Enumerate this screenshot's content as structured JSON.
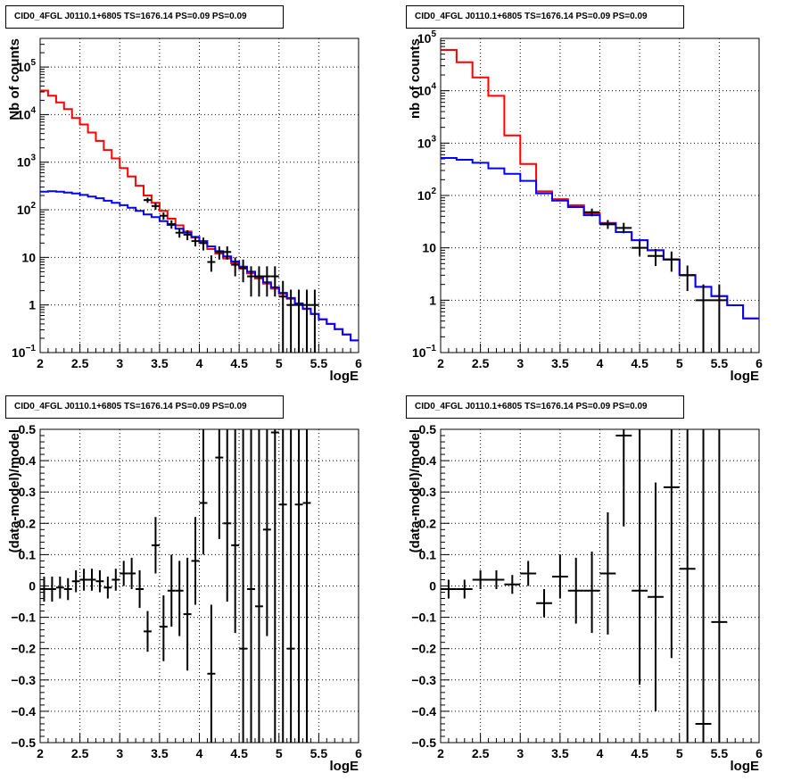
{
  "panels": [
    {
      "title": "CID0_4FGL J0110.1+6805 TS=1676.14 PS=0.09 PS=0.09",
      "chart_data": {
        "type": "line",
        "xlabel": "logE",
        "ylabel": "Nb of counts",
        "yscale": "log",
        "xlim": [
          2,
          6
        ],
        "ylim": [
          0.1,
          400000
        ],
        "grid": true,
        "xticks": [
          "2",
          "2.5",
          "3",
          "3.5",
          "4",
          "4.5",
          "5",
          "5.5",
          "6"
        ],
        "yticks": [
          {
            "v": 0.1,
            "base": "10",
            "exp": "−1"
          },
          {
            "v": 1,
            "base": "1",
            "exp": ""
          },
          {
            "v": 10,
            "base": "10",
            "exp": ""
          },
          {
            "v": 100,
            "base": "10",
            "exp": "2"
          },
          {
            "v": 1000,
            "base": "10",
            "exp": "3"
          },
          {
            "v": 10000,
            "base": "10",
            "exp": "4"
          },
          {
            "v": 100000,
            "base": "10",
            "exp": "5"
          }
        ],
        "series": [
          {
            "color": "#ff0000",
            "style": "step",
            "bin_width": 0.1,
            "x": [
              2.0,
              2.1,
              2.2,
              2.3,
              2.4,
              2.5,
              2.6,
              2.7,
              2.8,
              2.9,
              3.0,
              3.1,
              3.2,
              3.3,
              3.4,
              3.5,
              3.6,
              3.7,
              3.8,
              3.9,
              4.0,
              4.1,
              4.2,
              4.3,
              4.4,
              4.5,
              4.6,
              4.7,
              4.8,
              4.9,
              5.0,
              5.1,
              5.2,
              5.3,
              5.4,
              5.5,
              5.6,
              5.7,
              5.8,
              5.9
            ],
            "y": [
              32000,
              25000,
              18000,
              13000,
              8500,
              6200,
              4200,
              2800,
              1800,
              1200,
              750,
              500,
              320,
              200,
              140,
              95,
              65,
              47,
              35,
              26,
              20,
              15,
              12,
              9.5,
              7.5,
              5.8,
              4.6,
              3.6,
              2.8,
              2.2,
              1.7,
              1.35,
              1.05,
              0.82,
              0.65,
              0.5,
              0.4,
              0.31,
              0.24,
              0.18
            ]
          },
          {
            "color": "#0000ff",
            "style": "step",
            "bin_width": 0.1,
            "x": [
              2.0,
              2.1,
              2.2,
              2.3,
              2.4,
              2.5,
              2.6,
              2.7,
              2.8,
              2.9,
              3.0,
              3.1,
              3.2,
              3.3,
              3.4,
              3.5,
              3.6,
              3.7,
              3.8,
              3.9,
              4.0,
              4.1,
              4.2,
              4.3,
              4.4,
              4.5,
              4.6,
              4.7,
              4.8,
              4.9,
              5.0,
              5.1,
              5.2,
              5.3,
              5.4,
              5.5,
              5.6,
              5.7,
              5.8,
              5.9
            ],
            "y": [
              240,
              245,
              240,
              230,
              220,
              205,
              190,
              175,
              155,
              140,
              125,
              110,
              95,
              80,
              70,
              58,
              48,
              40,
              33,
              27,
              22,
              17,
              13.5,
              10.5,
              8.2,
              6.4,
              5.0,
              3.9,
              3.0,
              2.35,
              1.8,
              1.4,
              1.08,
              0.84,
              0.65,
              0.5,
              0.4,
              0.31,
              0.24,
              0.18
            ]
          },
          {
            "color": "#000000",
            "style": "errorbar",
            "xerr": 0.05,
            "x": [
              3.35,
              3.45,
              3.55,
              3.65,
              3.75,
              3.85,
              3.95,
              4.05,
              4.15,
              4.25,
              4.35,
              4.45,
              4.55,
              4.65,
              4.75,
              4.85,
              4.95,
              5.05,
              5.15,
              5.25,
              5.35,
              5.45
            ],
            "y": [
              160,
              120,
              75,
              50,
              33,
              30,
              22,
              20,
              8,
              13,
              13,
              7,
              6,
              4,
              4,
              4,
              4,
              1.5,
              1,
              1,
              1,
              1
            ],
            "ylo": [
              140,
              100,
              62,
              40,
              26,
              23,
              17,
              14,
              5,
              9,
              9,
              4,
              3,
              1.5,
              1.5,
              1.5,
              1.5,
              0.1,
              0.1,
              0.1,
              0.1,
              0.1
            ],
            "yhi": [
              180,
              140,
              88,
              60,
              40,
              37,
              28,
              26,
              11,
              17,
              17,
              10,
              9,
              6.5,
              6.5,
              6.5,
              6.5,
              3.2,
              2.1,
              2.1,
              2.1,
              2.1
            ]
          }
        ]
      }
    },
    {
      "title": "CID0_4FGL J0110.1+6805 TS=1676.14 PS=0.09 PS=0.09",
      "chart_data": {
        "type": "line",
        "xlabel": "logE",
        "ylabel": "nb of counts",
        "yscale": "log",
        "xlim": [
          2,
          6
        ],
        "ylim": [
          0.1,
          100000
        ],
        "grid": true,
        "xticks": [
          "2",
          "2.5",
          "3",
          "3.5",
          "4",
          "4.5",
          "5",
          "5.5",
          "6"
        ],
        "yticks": [
          {
            "v": 0.1,
            "base": "10",
            "exp": "−1"
          },
          {
            "v": 1,
            "base": "1",
            "exp": ""
          },
          {
            "v": 10,
            "base": "10",
            "exp": ""
          },
          {
            "v": 100,
            "base": "10",
            "exp": "2"
          },
          {
            "v": 1000,
            "base": "10",
            "exp": "3"
          },
          {
            "v": 10000,
            "base": "10",
            "exp": "4"
          },
          {
            "v": 100000,
            "base": "10",
            "exp": "5"
          }
        ],
        "series": [
          {
            "color": "#ff0000",
            "style": "step",
            "bin_width": 0.2,
            "x": [
              2.0,
              2.2,
              2.4,
              2.6,
              2.8,
              3.0,
              3.2,
              3.4,
              3.6,
              3.8,
              4.0,
              4.2,
              4.4,
              4.6,
              4.8,
              5.0,
              5.2,
              5.4,
              5.6,
              5.8
            ],
            "y": [
              60000,
              35000,
              18000,
              8000,
              1400,
              400,
              120,
              85,
              65,
              45,
              30,
              20,
              14,
              9,
              6,
              3,
              1.8,
              1.2,
              0.8,
              0.45
            ]
          },
          {
            "color": "#0000ff",
            "style": "step",
            "bin_width": 0.2,
            "x": [
              2.0,
              2.2,
              2.4,
              2.6,
              2.8,
              3.0,
              3.2,
              3.4,
              3.6,
              3.8,
              4.0,
              4.2,
              4.4,
              4.6,
              4.8,
              5.0,
              5.2,
              5.4,
              5.6,
              5.8
            ],
            "y": [
              520,
              480,
              420,
              330,
              260,
              190,
              110,
              80,
              60,
              42,
              29,
              20,
              14,
              9,
              6,
              3,
              1.8,
              1.2,
              0.8,
              0.45
            ]
          },
          {
            "color": "#000000",
            "style": "errorbar",
            "xerr": 0.1,
            "x": [
              3.9,
              4.1,
              4.3,
              4.5,
              4.7,
              4.9,
              5.1,
              5.3,
              5.5
            ],
            "y": [
              48,
              28,
              24,
              10,
              7,
              6,
              3,
              1,
              1
            ],
            "ylo": [
              40,
              23,
              19,
              7,
              4.5,
              3.5,
              1.5,
              0.1,
              0.1
            ],
            "yhi": [
              56,
              34,
              30,
              13.5,
              9.5,
              8.5,
              4.6,
              2,
              2
            ]
          }
        ]
      }
    },
    {
      "title": "CID0_4FGL J0110.1+6805 TS=1676.14 PS=0.09 PS=0.09",
      "chart_data": {
        "type": "scatter",
        "xlabel": "logE",
        "ylabel": "(data-model)/model",
        "yscale": "linear",
        "xlim": [
          2,
          6
        ],
        "ylim": [
          -0.5,
          0.5
        ],
        "grid": true,
        "xticks": [
          "2",
          "2.5",
          "3",
          "3.5",
          "4",
          "4.5",
          "5",
          "5.5",
          "6"
        ],
        "yticks": [
          {
            "v": -0.5,
            "base": "−0.5",
            "exp": ""
          },
          {
            "v": -0.4,
            "base": "−0.4",
            "exp": ""
          },
          {
            "v": -0.3,
            "base": "−0.3",
            "exp": ""
          },
          {
            "v": -0.2,
            "base": "−0.2",
            "exp": ""
          },
          {
            "v": -0.1,
            "base": "−0.1",
            "exp": ""
          },
          {
            "v": 0,
            "base": "0",
            "exp": ""
          },
          {
            "v": 0.1,
            "base": "0.1",
            "exp": ""
          },
          {
            "v": 0.2,
            "base": "0.2",
            "exp": ""
          },
          {
            "v": 0.3,
            "base": "0.3",
            "exp": ""
          },
          {
            "v": 0.4,
            "base": "0.4",
            "exp": ""
          },
          {
            "v": 0.5,
            "base": "0.5",
            "exp": ""
          }
        ],
        "series": [
          {
            "color": "#000000",
            "style": "errorbar",
            "xerr": 0.05,
            "x": [
              2.05,
              2.15,
              2.25,
              2.35,
              2.45,
              2.55,
              2.65,
              2.75,
              2.85,
              2.95,
              3.05,
              3.15,
              3.25,
              3.35,
              3.45,
              3.55,
              3.65,
              3.75,
              3.85,
              3.95,
              4.05,
              4.15,
              4.25,
              4.35,
              4.45,
              4.55,
              4.65,
              4.75,
              4.85,
              4.95,
              5.05,
              5.15,
              5.25,
              5.35
            ],
            "y": [
              -0.01,
              -0.01,
              -0.005,
              -0.01,
              0.015,
              0.02,
              0.02,
              0.015,
              -0.005,
              0.02,
              0.04,
              0.04,
              -0.01,
              -0.145,
              0.13,
              -0.13,
              -0.015,
              -0.015,
              -0.09,
              0.08,
              0.265,
              -0.28,
              0.41,
              0.2,
              0.13,
              -0.2,
              -0.01,
              -0.065,
              0.18,
              0.49,
              0.26,
              -0.2,
              0.26,
              0.265
            ],
            "ylo": [
              -0.05,
              -0.05,
              -0.04,
              -0.045,
              -0.02,
              -0.015,
              -0.015,
              -0.02,
              -0.04,
              -0.015,
              0.0,
              -0.01,
              -0.07,
              -0.21,
              0.04,
              -0.24,
              -0.13,
              -0.16,
              -0.27,
              -0.06,
              0.1,
              -0.5,
              0.15,
              -0.05,
              -0.15,
              -0.5,
              -0.5,
              -0.5,
              -0.16,
              -0.5,
              -0.5,
              -0.5,
              -0.5,
              -0.5
            ],
            "yhi": [
              0.03,
              0.03,
              0.03,
              0.025,
              0.05,
              0.055,
              0.055,
              0.05,
              0.03,
              0.055,
              0.08,
              0.09,
              0.05,
              -0.08,
              0.22,
              -0.03,
              0.1,
              0.08,
              0.09,
              0.22,
              0.5,
              -0.06,
              0.5,
              0.5,
              0.5,
              0.5,
              0.5,
              0.5,
              0.5,
              0.5,
              0.5,
              0.5,
              0.5,
              0.5
            ]
          }
        ]
      }
    },
    {
      "title": "CID0_4FGL J0110.1+6805 TS=1676.14 PS=0.09 PS=0.09",
      "chart_data": {
        "type": "scatter",
        "xlabel": "logE",
        "ylabel": "(data-model)/model",
        "yscale": "linear",
        "xlim": [
          2,
          6
        ],
        "ylim": [
          -0.5,
          0.5
        ],
        "grid": true,
        "xticks": [
          "2",
          "2.5",
          "3",
          "3.5",
          "4",
          "4.5",
          "5",
          "5.5",
          "6"
        ],
        "yticks": [
          {
            "v": -0.5,
            "base": "−0.5",
            "exp": ""
          },
          {
            "v": -0.4,
            "base": "−0.4",
            "exp": ""
          },
          {
            "v": -0.3,
            "base": "−0.3",
            "exp": ""
          },
          {
            "v": -0.2,
            "base": "−0.2",
            "exp": ""
          },
          {
            "v": -0.1,
            "base": "−0.1",
            "exp": ""
          },
          {
            "v": 0,
            "base": "0",
            "exp": ""
          },
          {
            "v": 0.1,
            "base": "0.1",
            "exp": ""
          },
          {
            "v": 0.2,
            "base": "0.2",
            "exp": ""
          },
          {
            "v": 0.3,
            "base": "0.3",
            "exp": ""
          },
          {
            "v": 0.4,
            "base": "0.4",
            "exp": ""
          },
          {
            "v": 0.5,
            "base": "0.5",
            "exp": ""
          }
        ],
        "series": [
          {
            "color": "#000000",
            "style": "errorbar",
            "xerr": 0.1,
            "x": [
              2.1,
              2.3,
              2.5,
              2.7,
              2.9,
              3.1,
              3.3,
              3.5,
              3.7,
              3.9,
              4.1,
              4.3,
              4.5,
              4.7,
              4.9,
              5.1,
              5.3,
              5.5
            ],
            "y": [
              -0.01,
              -0.01,
              0.02,
              0.02,
              0.005,
              0.04,
              -0.055,
              0.03,
              -0.015,
              -0.015,
              0.04,
              0.48,
              -0.015,
              -0.035,
              0.315,
              0.055,
              -0.44,
              -0.115
            ],
            "ylo": [
              -0.04,
              -0.04,
              -0.01,
              -0.01,
              -0.025,
              0.0,
              -0.1,
              -0.04,
              -0.12,
              -0.15,
              -0.155,
              0.19,
              -0.315,
              -0.4,
              -0.23,
              -0.5,
              -0.5,
              -0.5
            ],
            "yhi": [
              0.02,
              0.02,
              0.05,
              0.05,
              0.035,
              0.08,
              -0.01,
              0.1,
              0.09,
              0.11,
              0.235,
              0.5,
              0.5,
              0.33,
              0.5,
              0.5,
              0.5,
              0.5
            ]
          }
        ]
      }
    }
  ]
}
